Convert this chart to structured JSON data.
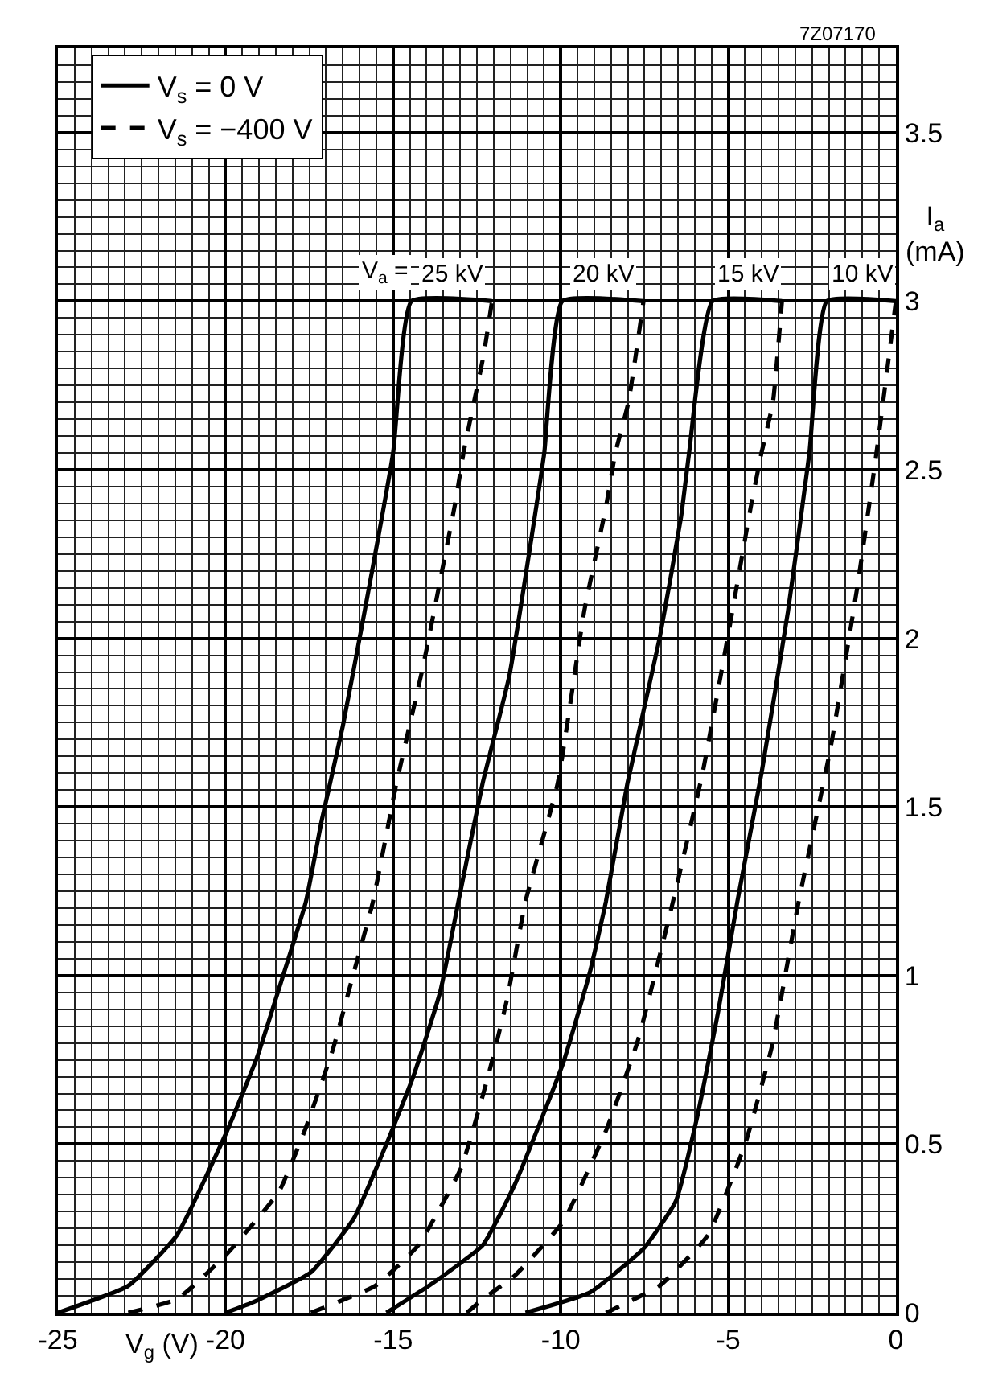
{
  "chart_data": {
    "type": "line",
    "xlabel": "V$_{g}$ (V)",
    "ylabel": "I$_{a}$ (mA)",
    "xlim": [
      -25,
      0
    ],
    "ylim": [
      0,
      3.75
    ],
    "xticks": [
      -25,
      -20,
      -15,
      -10,
      -5,
      0
    ],
    "yticks": [
      0,
      0.5,
      1,
      1.5,
      2,
      2.5,
      3,
      3.5
    ],
    "grid": true,
    "legend": "top left",
    "series": [
      {
        "name": "V$_{s}$ = 0 V",
        "color": "#000000",
        "line_style": "solid",
        "x": [
          -25,
          -22.9,
          -21.45,
          -19.95,
          -19.05,
          -18.25,
          -17.6,
          -17.13,
          -16.5,
          -15.85,
          -15.0,
          -14.45,
          -12.05
        ],
        "values": [
          0,
          0.08,
          0.23,
          0.54,
          0.76,
          1.01,
          1.22,
          1.46,
          1.74,
          2.08,
          2.55,
          3.0,
          3.0
        ]
      },
      {
        "name": "V$_{s}$ = −400 V",
        "color": "#000000",
        "line_style": "dashed",
        "x": [
          -22.9,
          -21.45,
          -20.0,
          -18.4,
          -17.6,
          -16.8,
          -16.17,
          -15.6,
          -14.9,
          -14.1,
          -13.6,
          -13.13,
          -12.9,
          -12.3,
          -12.05
        ],
        "values": [
          0,
          0.04,
          0.17,
          0.36,
          0.55,
          0.78,
          1.01,
          1.22,
          1.57,
          1.92,
          2.17,
          2.41,
          2.55,
          2.84,
          3.0
        ]
      },
      {
        "color": "#000000",
        "line_style": "solid",
        "x": [
          -20.0,
          -19.2,
          -17.45,
          -16.17,
          -15.2,
          -14.4,
          -13.6,
          -13.05,
          -12.33,
          -11.53,
          -10.73,
          -10.49,
          -9.95,
          -7.53
        ],
        "values": [
          0,
          0.03,
          0.12,
          0.28,
          0.5,
          0.7,
          0.95,
          1.22,
          1.57,
          1.89,
          2.39,
          2.55,
          3.0,
          3.0
        ]
      },
      {
        "color": "#000000",
        "line_style": "dashed",
        "x": [
          -17.45,
          -15.53,
          -14.25,
          -12.97,
          -12.17,
          -11.6,
          -11.05,
          -10.09,
          -9.3,
          -8.65,
          -8.37,
          -7.98,
          -7.53
        ],
        "values": [
          0,
          0.08,
          0.2,
          0.43,
          0.7,
          0.93,
          1.22,
          1.57,
          2.08,
          2.39,
          2.55,
          2.7,
          3.0
        ]
      },
      {
        "color": "#000000",
        "line_style": "solid",
        "x": [
          -15.2,
          -13.93,
          -12.33,
          -11.37,
          -9.93,
          -9.13,
          -8.65,
          -8.01,
          -7.05,
          -6.41,
          -6.17,
          -5.47,
          -3.4
        ],
        "values": [
          0,
          0.08,
          0.2,
          0.38,
          0.74,
          1.01,
          1.22,
          1.57,
          2.0,
          2.36,
          2.55,
          3.0,
          3.0
        ]
      },
      {
        "color": "#000000",
        "line_style": "dashed",
        "x": [
          -12.8,
          -12.33,
          -11.37,
          -9.93,
          -8.65,
          -7.69,
          -6.65,
          -5.77,
          -4.97,
          -4.33,
          -4.01,
          -3.67,
          -3.4
        ],
        "values": [
          0,
          0.04,
          0.11,
          0.27,
          0.54,
          0.81,
          1.22,
          1.6,
          2.03,
          2.39,
          2.55,
          2.7,
          3.0
        ]
      },
      {
        "color": "#000000",
        "line_style": "solid",
        "x": [
          -11.05,
          -9.13,
          -7.53,
          -6.57,
          -5.93,
          -5.29,
          -4.73,
          -4.01,
          -3.22,
          -2.58,
          -2.06,
          0
        ],
        "values": [
          0,
          0.06,
          0.19,
          0.33,
          0.58,
          0.9,
          1.22,
          1.6,
          2.08,
          2.55,
          3.0,
          3.0
        ]
      },
      {
        "color": "#000000",
        "line_style": "dashed",
        "x": [
          -8.65,
          -7.05,
          -5.61,
          -4.5,
          -3.7,
          -2.9,
          -1.94,
          -1.14,
          -0.58,
          0
        ],
        "values": [
          0,
          0.08,
          0.23,
          0.5,
          0.79,
          1.22,
          1.68,
          2.16,
          2.55,
          3.0
        ]
      }
    ],
    "annotations": [
      "V$_{a}$ =",
      "25 kV",
      "20 kV",
      "15 kV",
      "10 kV",
      "7Z07170"
    ]
  }
}
